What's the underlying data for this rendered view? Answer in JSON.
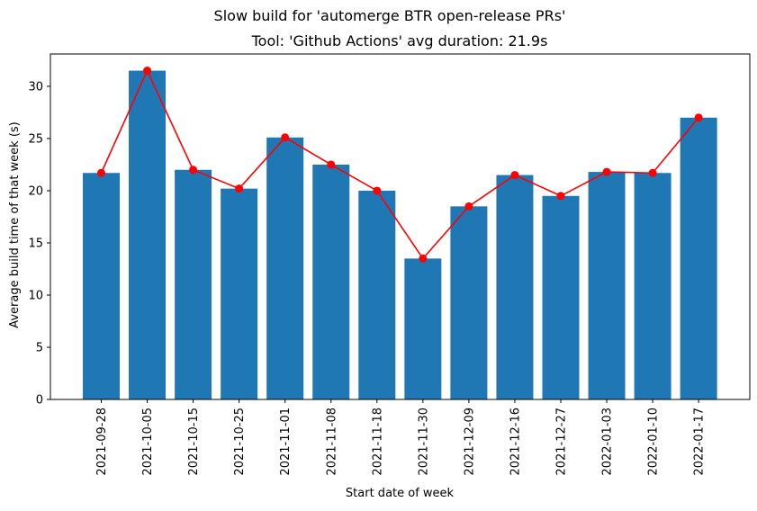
{
  "chart_data": {
    "type": "bar",
    "suptitle": "Slow build for 'automerge BTR open-release PRs'",
    "title": "Tool: 'Github Actions' avg duration: 21.9s",
    "xlabel": "Start date of week",
    "ylabel": "Average build time of that week (s)",
    "categories": [
      "2021-09-28",
      "2021-10-05",
      "2021-10-15",
      "2021-10-25",
      "2021-11-01",
      "2021-11-08",
      "2021-11-18",
      "2021-11-30",
      "2021-12-09",
      "2021-12-16",
      "2021-12-27",
      "2022-01-03",
      "2022-01-10",
      "2022-01-17"
    ],
    "values": [
      21.7,
      31.5,
      22.0,
      20.2,
      25.1,
      22.5,
      20.0,
      13.5,
      18.5,
      21.5,
      19.5,
      21.8,
      21.7,
      27.0
    ],
    "line_values": [
      21.7,
      31.5,
      22.0,
      20.2,
      25.1,
      22.5,
      20.0,
      13.5,
      18.5,
      21.5,
      19.5,
      21.8,
      21.7,
      27.0
    ],
    "ylim": [
      0,
      33.1
    ],
    "yticks": [
      0,
      5,
      10,
      15,
      20,
      25,
      30
    ],
    "grid": false,
    "bar_color": "#1f77b4",
    "line_color": "#ff0000"
  }
}
